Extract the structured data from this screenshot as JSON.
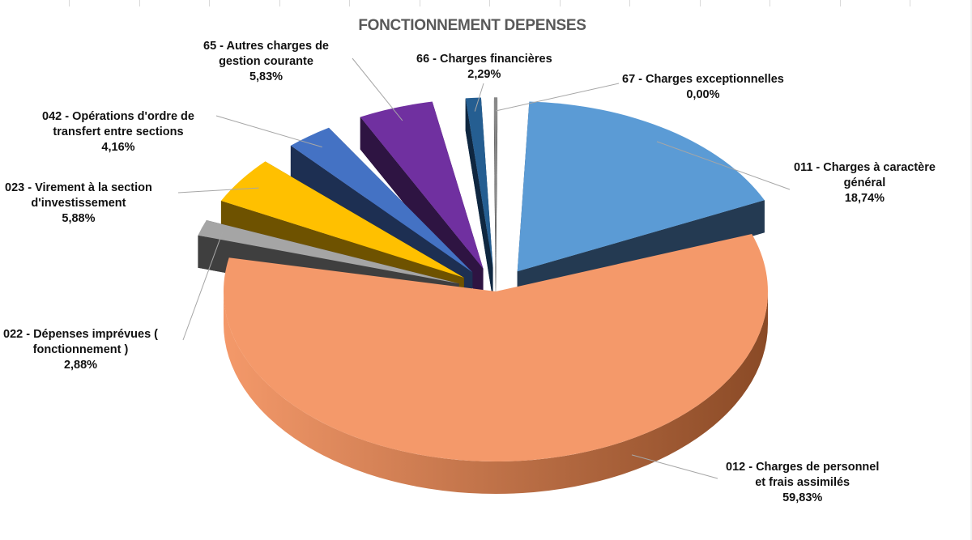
{
  "chart_data": {
    "type": "pie",
    "title": "FONCTIONNEMENT DEPENSES",
    "slices": [
      {
        "code": "011",
        "lines": [
          "011 - Charges à caractère",
          "général"
        ],
        "value_label": "18,74%",
        "value": 18.74,
        "color": "#5b9bd5",
        "side": "#243a52"
      },
      {
        "code": "012",
        "lines": [
          "012 - Charges de personnel",
          "et frais assimilés"
        ],
        "value_label": "59,83%",
        "value": 59.83,
        "color": "#f4996a",
        "side": "#8a4a26"
      },
      {
        "code": "022",
        "lines": [
          "022 - Dépenses imprévues (",
          "fonctionnement )"
        ],
        "value_label": "2,88%",
        "value": 2.88,
        "color": "#a5a5a5",
        "side": "#3f3f3f"
      },
      {
        "code": "023",
        "lines": [
          "023 - Virement à la section",
          "d'investissement"
        ],
        "value_label": "5,88%",
        "value": 5.88,
        "color": "#ffc000",
        "side": "#6e5200"
      },
      {
        "code": "042",
        "lines": [
          "042 - Opérations d'ordre de",
          "transfert entre sections"
        ],
        "value_label": "4,16%",
        "value": 4.16,
        "color": "#4472c4",
        "side": "#1d2f52"
      },
      {
        "code": "65",
        "lines": [
          "65 - Autres charges de",
          "gestion courante"
        ],
        "value_label": "5,83%",
        "value": 5.83,
        "color": "#7030a0",
        "side": "#2e1442"
      },
      {
        "code": "66",
        "lines": [
          "66 - Charges financières"
        ],
        "value_label": "2,29%",
        "value": 2.29,
        "color": "#255e91",
        "side": "#0f2740"
      },
      {
        "code": "67",
        "lines": [
          "67 - Charges exceptionnelles"
        ],
        "value_label": "0,00%",
        "value": 0.0,
        "color": "#888888",
        "side": "#444444"
      }
    ]
  }
}
